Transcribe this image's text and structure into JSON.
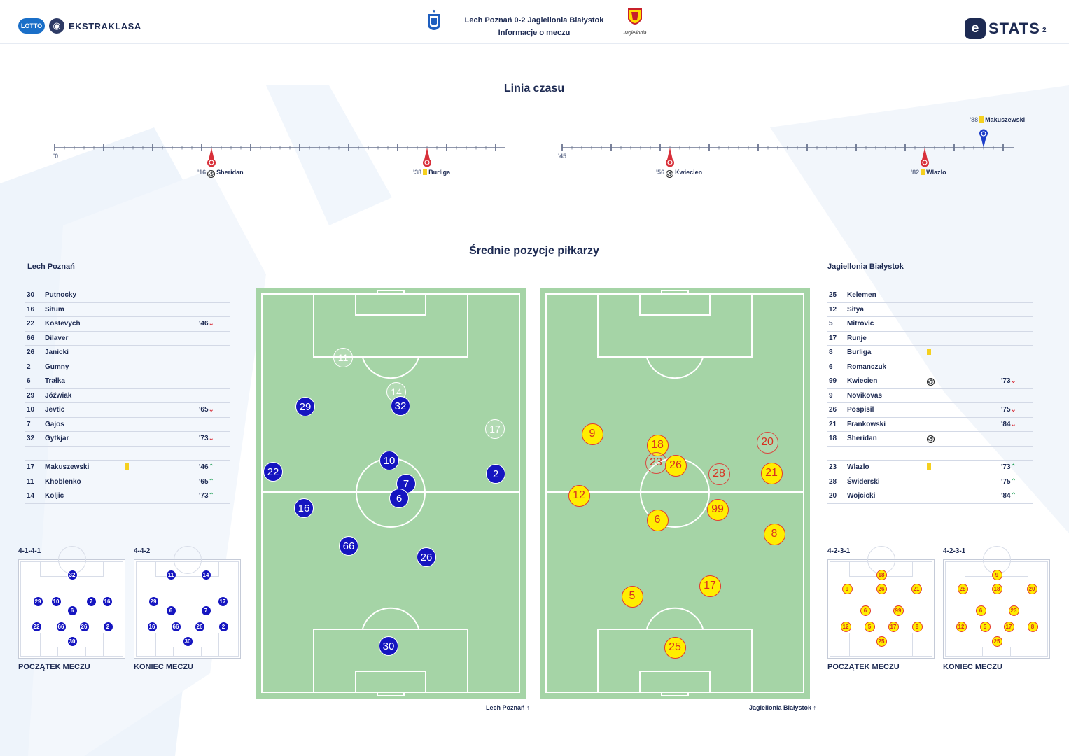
{
  "header": {
    "league_badge": "LOTTO",
    "league_name": "EKSTRAKLASA",
    "match_title": "Lech Poznań 0-2 Jagiellonia Białystok",
    "match_subtitle": "Informacje o meczu",
    "stats_mark": "e",
    "stats_brand": "STATS",
    "page_number": "2",
    "home_crest_icon": "lech-crest-icon",
    "away_crest_icon": "jagiellonia-crest-icon",
    "away_crest_text": "Jagiellonia"
  },
  "timeline": {
    "title": "Linia czasu",
    "first_half_start": "'0",
    "second_half_start": "'45",
    "events": [
      {
        "minute": "'16",
        "type": "goal",
        "player": "Sheridan",
        "team": "away",
        "half": 1
      },
      {
        "minute": "'38",
        "type": "yellow",
        "player": "Burliga",
        "team": "away",
        "half": 1
      },
      {
        "minute": "'56",
        "type": "goal",
        "player": "Kwiecien",
        "team": "away",
        "half": 2
      },
      {
        "minute": "'82",
        "type": "yellow",
        "player": "Wlazlo",
        "team": "away",
        "half": 2
      },
      {
        "minute": "'88",
        "type": "yellow",
        "player": "Makuszewski",
        "team": "home",
        "half": 2
      }
    ]
  },
  "positions": {
    "title": "Średnie pozycje piłkarzy",
    "home_caption": "Lech Poznań",
    "away_caption": "Jagiellonia Białystok"
  },
  "home": {
    "name": "Lech Poznań",
    "colors": {
      "primary": "#1515c0"
    },
    "starters": [
      {
        "no": "30",
        "name": "Putnocky",
        "event": "",
        "sub": "",
        "dir": ""
      },
      {
        "no": "16",
        "name": "Situm",
        "event": "",
        "sub": "",
        "dir": ""
      },
      {
        "no": "22",
        "name": "Kostevych",
        "event": "",
        "sub": "'46",
        "dir": "down"
      },
      {
        "no": "66",
        "name": "Dilaver",
        "event": "",
        "sub": "",
        "dir": ""
      },
      {
        "no": "26",
        "name": "Janicki",
        "event": "",
        "sub": "",
        "dir": ""
      },
      {
        "no": "2",
        "name": "Gumny",
        "event": "",
        "sub": "",
        "dir": ""
      },
      {
        "no": "6",
        "name": "Trałka",
        "event": "",
        "sub": "",
        "dir": ""
      },
      {
        "no": "29",
        "name": "Jóźwiak",
        "event": "",
        "sub": "",
        "dir": ""
      },
      {
        "no": "10",
        "name": "Jevtic",
        "event": "",
        "sub": "'65",
        "dir": "down"
      },
      {
        "no": "7",
        "name": "Gajos",
        "event": "",
        "sub": "",
        "dir": ""
      },
      {
        "no": "32",
        "name": "Gytkjar",
        "event": "",
        "sub": "'73",
        "dir": "down"
      }
    ],
    "subs": [
      {
        "no": "17",
        "name": "Makuszewski",
        "event": "yellow",
        "sub": "'46",
        "dir": "up"
      },
      {
        "no": "11",
        "name": "Khoblenko",
        "event": "",
        "sub": "'65",
        "dir": "up"
      },
      {
        "no": "14",
        "name": "Koljic",
        "event": "",
        "sub": "'73",
        "dir": "up"
      }
    ],
    "formation_start": "4-1-4-1",
    "formation_end": "4-4-2",
    "start_label": "POCZĄTEK MECZU",
    "end_label": "KONIEC MECZU"
  },
  "away": {
    "name": "Jagiellonia Białystok",
    "colors": {
      "primary": "#ffee00",
      "border": "#e33a2b"
    },
    "starters": [
      {
        "no": "25",
        "name": "Kelemen",
        "event": "",
        "sub": "",
        "dir": ""
      },
      {
        "no": "12",
        "name": "Sitya",
        "event": "",
        "sub": "",
        "dir": ""
      },
      {
        "no": "5",
        "name": "Mitrovic",
        "event": "",
        "sub": "",
        "dir": ""
      },
      {
        "no": "17",
        "name": "Runje",
        "event": "",
        "sub": "",
        "dir": ""
      },
      {
        "no": "8",
        "name": "Burliga",
        "event": "yellow",
        "sub": "",
        "dir": ""
      },
      {
        "no": "6",
        "name": "Romanczuk",
        "event": "",
        "sub": "",
        "dir": ""
      },
      {
        "no": "99",
        "name": "Kwiecien",
        "event": "goal",
        "sub": "'73",
        "dir": "down"
      },
      {
        "no": "9",
        "name": "Novikovas",
        "event": "",
        "sub": "",
        "dir": ""
      },
      {
        "no": "26",
        "name": "Pospisil",
        "event": "",
        "sub": "'75",
        "dir": "down"
      },
      {
        "no": "21",
        "name": "Frankowski",
        "event": "",
        "sub": "'84",
        "dir": "down"
      },
      {
        "no": "18",
        "name": "Sheridan",
        "event": "goal",
        "sub": "",
        "dir": ""
      }
    ],
    "subs": [
      {
        "no": "23",
        "name": "Wlazlo",
        "event": "yellow",
        "sub": "'73",
        "dir": "up"
      },
      {
        "no": "28",
        "name": "Świderski",
        "event": "",
        "sub": "'75",
        "dir": "up"
      },
      {
        "no": "20",
        "name": "Wojcicki",
        "event": "",
        "sub": "'84",
        "dir": "up"
      }
    ],
    "formation_start": "4-2-3-1",
    "formation_end": "4-2-3-1",
    "start_label": "POCZĄTEK MECZU",
    "end_label": "KONIEC MECZU"
  },
  "glyphs": {
    "arrow_down": "⌄",
    "arrow_up": "⌃",
    "ball": "⚽"
  }
}
